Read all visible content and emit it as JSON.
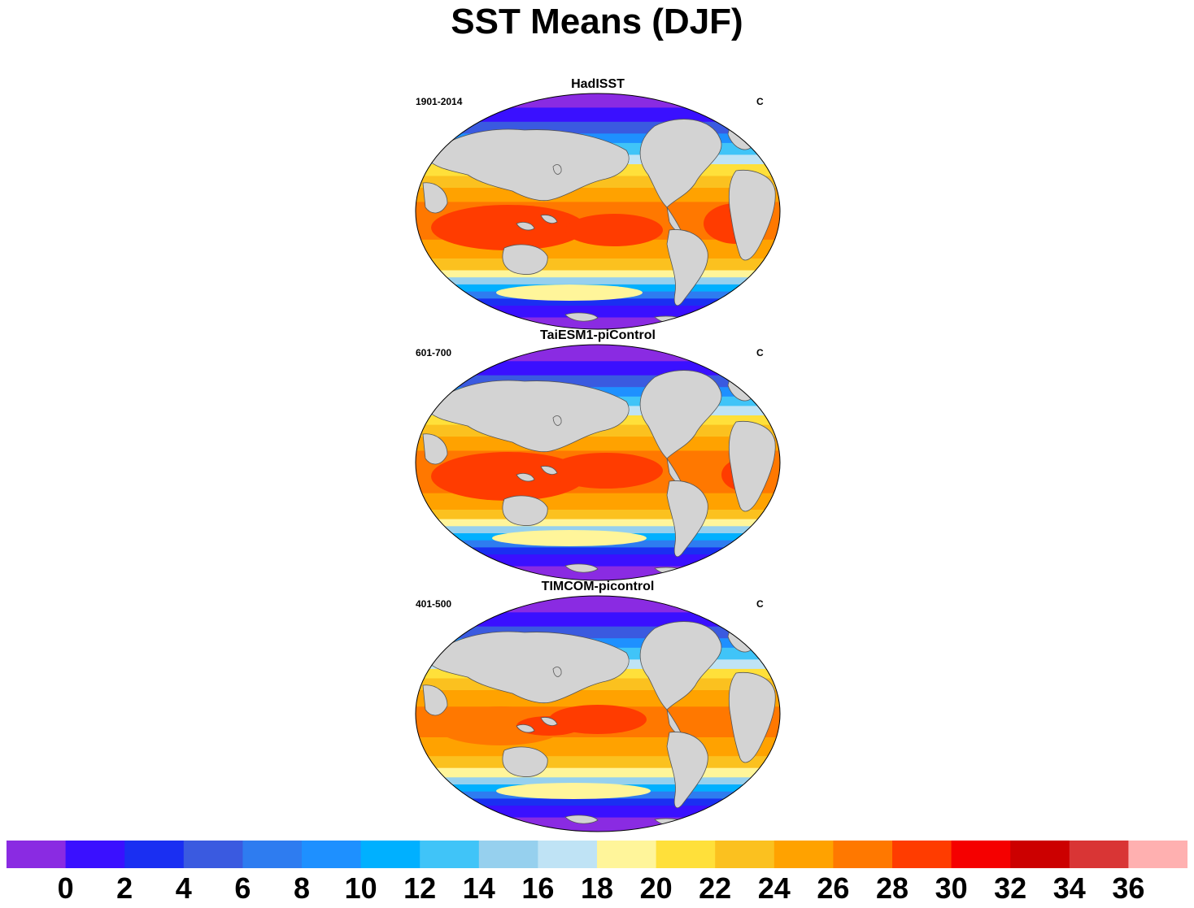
{
  "title": "SST Means (DJF)",
  "panels": [
    {
      "title": "HadISST",
      "left_label": "1901-2014",
      "right_label": "C"
    },
    {
      "title": "TaiESM1-piControl",
      "left_label": "601-700",
      "right_label": "C"
    },
    {
      "title": "TIMCOM-picontrol",
      "left_label": "401-500",
      "right_label": "C"
    }
  ],
  "colorbar": {
    "colors": [
      "#8a2be2",
      "#3a10ff",
      "#1a2ff2",
      "#3a5ae0",
      "#2e7cf0",
      "#1e90ff",
      "#00b0ff",
      "#40c4f8",
      "#96d0ee",
      "#bfe3f5",
      "#fff59a",
      "#ffe03a",
      "#fbc11f",
      "#ffa200",
      "#ff7800",
      "#ff3c00",
      "#f50000",
      "#cc0000",
      "#d93535",
      "#ffb0b0"
    ],
    "tick_labels": [
      "0",
      "2",
      "4",
      "6",
      "8",
      "10",
      "12",
      "14",
      "16",
      "18",
      "20",
      "22",
      "24",
      "26",
      "28",
      "30",
      "32",
      "34",
      "36"
    ]
  },
  "land_color": "#d3d3d3"
}
